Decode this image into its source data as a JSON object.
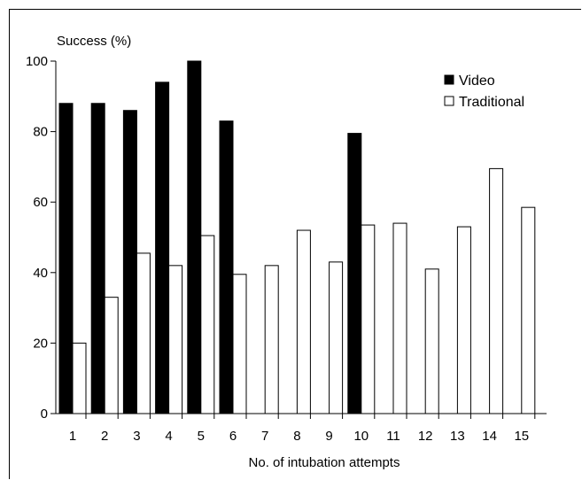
{
  "chart_data": {
    "type": "bar",
    "title": "",
    "ylabel": "Success (%)",
    "xlabel": "No. of intubation attempts",
    "categories": [
      "1",
      "2",
      "3",
      "4",
      "5",
      "6",
      "7",
      "8",
      "9",
      "10",
      "11",
      "12",
      "13",
      "14",
      "15"
    ],
    "ylim": [
      0,
      100
    ],
    "yticks": [
      0,
      20,
      40,
      60,
      80,
      100
    ],
    "grid": false,
    "legend_position": "top-right",
    "series": [
      {
        "name": "Video",
        "color": "#000000",
        "values": [
          88,
          88,
          86,
          94,
          100,
          83,
          null,
          null,
          null,
          79.5,
          null,
          null,
          null,
          null,
          null
        ]
      },
      {
        "name": "Traditional",
        "color": "#ffffff",
        "values": [
          20,
          33,
          45.5,
          42,
          50.5,
          39.5,
          42,
          52,
          43,
          53.5,
          54,
          41,
          53,
          69.5,
          58.5
        ]
      }
    ]
  }
}
